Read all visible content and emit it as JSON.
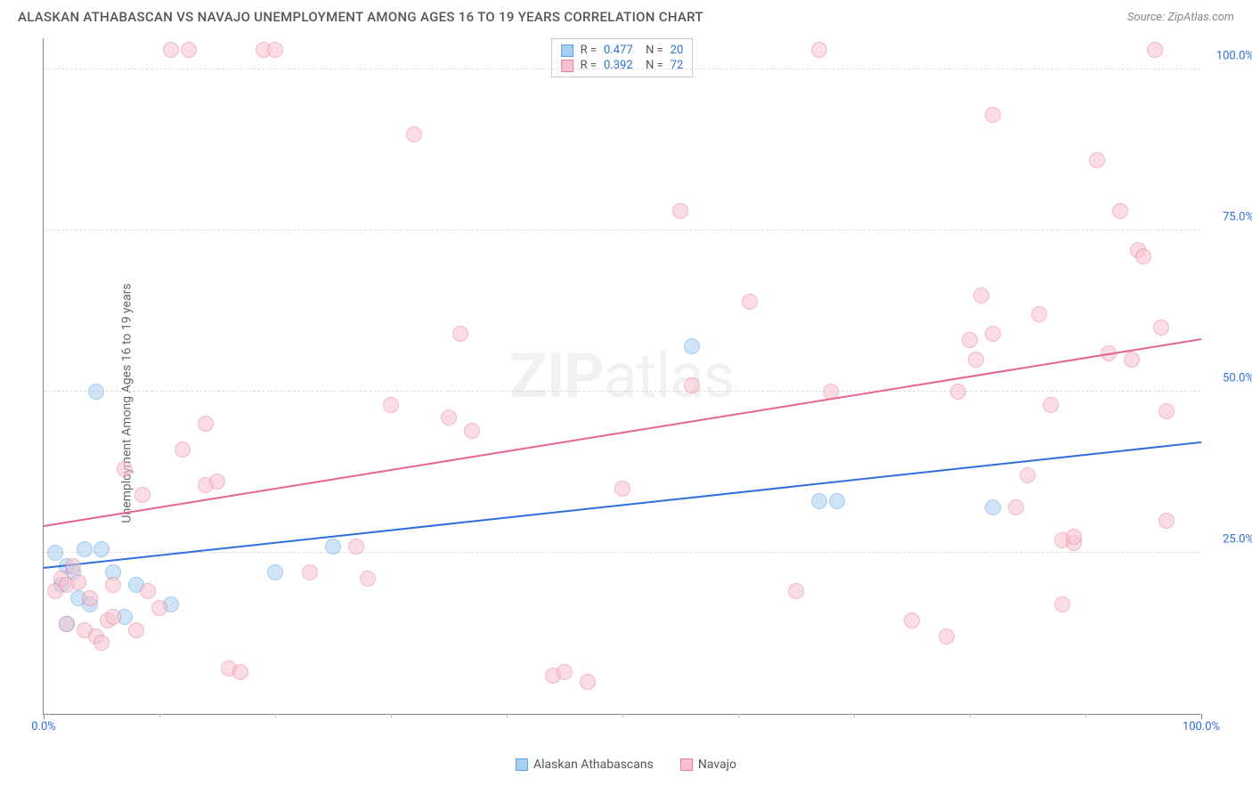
{
  "header": {
    "title": "ALASKAN ATHABASCAN VS NAVAJO UNEMPLOYMENT AMONG AGES 16 TO 19 YEARS CORRELATION CHART",
    "source": "Source: ZipAtlas.com"
  },
  "chart": {
    "type": "scatter",
    "ylabel": "Unemployment Among Ages 16 to 19 years",
    "xlim": [
      0,
      100
    ],
    "ylim": [
      0,
      105
    ],
    "xtick_major": [
      0,
      100
    ],
    "xtick_minor": [
      10,
      20,
      30,
      40,
      50,
      60,
      70,
      80,
      90
    ],
    "xtick_labels": [
      "0.0%",
      "100.0%"
    ],
    "ytick_positions": [
      25,
      50,
      75,
      100
    ],
    "ytick_labels": [
      "25.0%",
      "50.0%",
      "75.0%",
      "100.0%"
    ],
    "ytick_color": "#2e6edb",
    "xtick_color": "#2e6edb",
    "grid_color": "#dddddd",
    "border_color": "#888888",
    "background_color": "#ffffff",
    "marker_radius": 9,
    "marker_opacity": 0.55,
    "line_width": 2,
    "watermark": {
      "bold": "ZIP",
      "light": "atlas"
    },
    "series": [
      {
        "name": "Alaskan Athabascans",
        "color_fill": "#a8cef2",
        "color_stroke": "#5fa3e0",
        "line_color": "#2e6edb",
        "R": "0.477",
        "N": "20",
        "trend": {
          "x1": 0,
          "y1": 22.5,
          "x2": 100,
          "y2": 42
        },
        "points": [
          [
            1,
            25
          ],
          [
            1.5,
            20
          ],
          [
            2,
            23
          ],
          [
            2,
            14
          ],
          [
            2.5,
            22
          ],
          [
            3,
            18
          ],
          [
            3.5,
            25.5
          ],
          [
            4,
            17
          ],
          [
            4.5,
            50
          ],
          [
            5,
            25.5
          ],
          [
            6,
            22
          ],
          [
            7,
            15
          ],
          [
            8,
            20
          ],
          [
            11,
            17
          ],
          [
            20,
            22
          ],
          [
            25,
            26
          ],
          [
            56,
            57
          ],
          [
            67,
            33
          ],
          [
            68.5,
            33
          ],
          [
            82,
            32
          ]
        ]
      },
      {
        "name": "Navajo",
        "color_fill": "#f6c2ce",
        "color_stroke": "#eb7d98",
        "line_color": "#e8628a",
        "R": "0.392",
        "N": "72",
        "trend": {
          "x1": 0,
          "y1": 29,
          "x2": 100,
          "y2": 58
        },
        "points": [
          [
            1,
            19
          ],
          [
            1.5,
            21
          ],
          [
            2,
            20
          ],
          [
            2.5,
            23
          ],
          [
            2,
            14
          ],
          [
            3,
            20.5
          ],
          [
            3.5,
            13
          ],
          [
            4,
            18
          ],
          [
            4.5,
            12
          ],
          [
            5,
            11
          ],
          [
            5.5,
            14.5
          ],
          [
            6,
            15
          ],
          [
            6,
            20
          ],
          [
            7,
            38
          ],
          [
            8,
            13
          ],
          [
            8.5,
            34
          ],
          [
            9,
            19
          ],
          [
            10,
            16.5
          ],
          [
            11,
            103
          ],
          [
            12,
            41
          ],
          [
            12.5,
            103
          ],
          [
            14,
            35.5
          ],
          [
            14,
            45
          ],
          [
            15,
            36
          ],
          [
            16,
            7
          ],
          [
            17,
            6.5
          ],
          [
            19,
            103
          ],
          [
            20,
            103
          ],
          [
            23,
            22
          ],
          [
            27,
            26
          ],
          [
            28,
            21
          ],
          [
            30,
            48
          ],
          [
            32,
            90
          ],
          [
            35,
            46
          ],
          [
            36,
            59
          ],
          [
            37,
            44
          ],
          [
            44,
            6
          ],
          [
            45,
            6.5
          ],
          [
            47,
            5
          ],
          [
            50,
            35
          ],
          [
            55,
            78
          ],
          [
            56,
            51
          ],
          [
            61,
            64
          ],
          [
            65,
            19
          ],
          [
            67,
            103
          ],
          [
            68,
            50
          ],
          [
            75,
            14.5
          ],
          [
            78,
            12
          ],
          [
            79,
            50
          ],
          [
            80,
            58
          ],
          [
            80.5,
            55
          ],
          [
            81,
            65
          ],
          [
            82,
            59
          ],
          [
            82,
            93
          ],
          [
            84,
            32
          ],
          [
            85,
            37
          ],
          [
            86,
            62
          ],
          [
            87,
            48
          ],
          [
            88,
            17
          ],
          [
            88,
            27
          ],
          [
            89,
            26.5
          ],
          [
            89,
            27.5
          ],
          [
            91,
            86
          ],
          [
            92,
            56
          ],
          [
            93,
            78
          ],
          [
            94,
            55
          ],
          [
            94.5,
            72
          ],
          [
            95,
            71
          ],
          [
            96,
            103
          ],
          [
            96.5,
            60
          ],
          [
            97,
            47
          ],
          [
            97,
            30
          ]
        ]
      }
    ],
    "stats_legend_border": "#c8c8c8",
    "bottom_legend": [
      {
        "label": "Alaskan Athabascans",
        "fill": "#a8cef2",
        "stroke": "#5fa3e0"
      },
      {
        "label": "Navajo",
        "fill": "#f6c2ce",
        "stroke": "#eb7d98"
      }
    ]
  }
}
